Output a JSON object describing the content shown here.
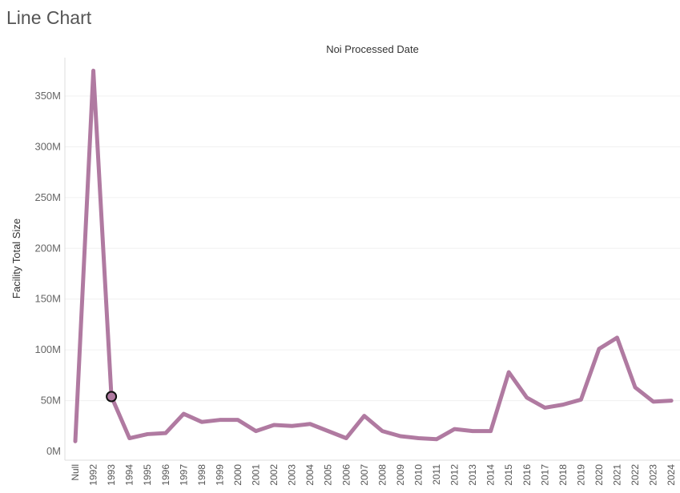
{
  "page": {
    "title": "Line Chart"
  },
  "chart_data": {
    "type": "line",
    "title": "Noi Processed Date",
    "xlabel": "",
    "ylabel": "Facility Total Size",
    "categories": [
      "Null",
      "1992",
      "1993",
      "1994",
      "1995",
      "1996",
      "1997",
      "1998",
      "1999",
      "2000",
      "2001",
      "2002",
      "2003",
      "2004",
      "2005",
      "2006",
      "2007",
      "2008",
      "2009",
      "2010",
      "2011",
      "2012",
      "2013",
      "2014",
      "2015",
      "2016",
      "2017",
      "2018",
      "2019",
      "2020",
      "2021",
      "2022",
      "2023",
      "2024"
    ],
    "series": [
      {
        "values": [
          10,
          375,
          54,
          13,
          17,
          18,
          37,
          29,
          31,
          31,
          20,
          26,
          25,
          27,
          20,
          13,
          35,
          20,
          15,
          13,
          12,
          22,
          20,
          20,
          78,
          53,
          43,
          46,
          51,
          101,
          112,
          63,
          49,
          50
        ],
        "color": "#b07aa1"
      }
    ],
    "highlighted_point": {
      "category": "1993",
      "value": 54
    },
    "ylim": [
      0,
      380
    ],
    "y_unit": "M",
    "y_ticks": [
      0,
      50,
      100,
      150,
      200,
      250,
      300,
      350
    ],
    "y_tick_labels": [
      "0M",
      "50M",
      "100M",
      "150M",
      "200M",
      "250M",
      "300M",
      "350M"
    ],
    "grid": true,
    "grid_color": "#f0f0f0"
  }
}
